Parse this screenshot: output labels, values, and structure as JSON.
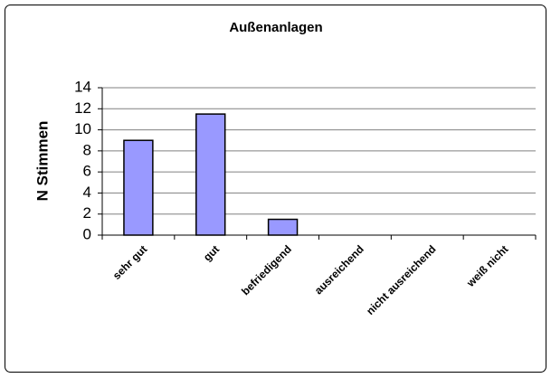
{
  "chart_data": {
    "type": "bar",
    "title": "Außenanlagen",
    "y_label": "N Stimmen",
    "categories": [
      "sehr gut",
      "gut",
      "befriedigend",
      "ausreichend",
      "nicht ausreichend",
      "weiß nicht"
    ],
    "values": [
      9,
      11.5,
      1.5,
      0,
      0,
      0
    ],
    "color": "#9999ff",
    "ylim": [
      0,
      14
    ],
    "yticks": [
      0,
      2,
      4,
      6,
      8,
      10,
      12,
      14
    ],
    "grid": true
  }
}
